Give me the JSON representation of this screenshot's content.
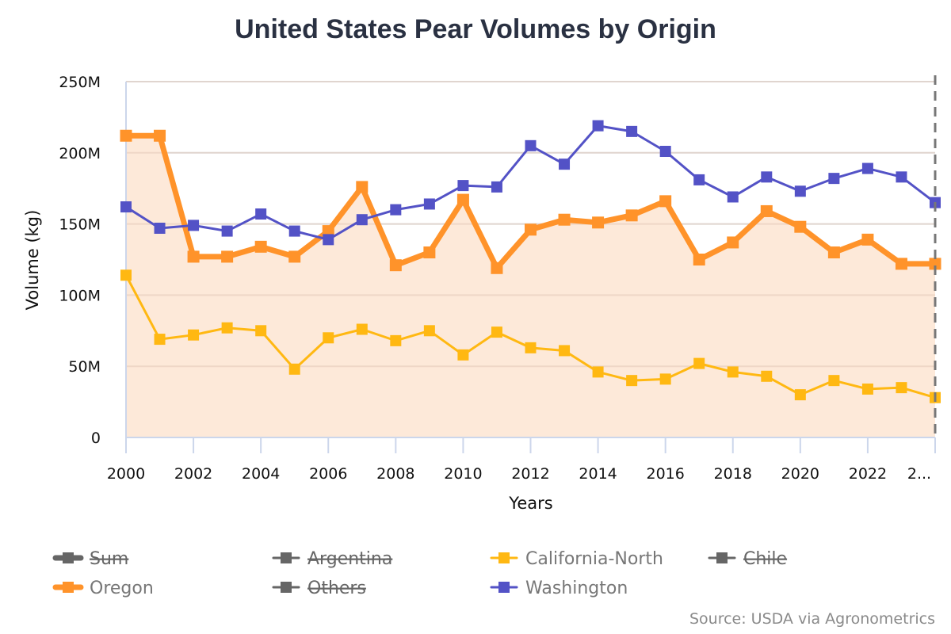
{
  "chart_data": {
    "type": "line",
    "title": "United States Pear Volumes by Origin",
    "xlabel": "Years",
    "ylabel": "Volume (kg)",
    "ylim": [
      0,
      250000000
    ],
    "y_ticks": [
      {
        "value": 0,
        "label": "0"
      },
      {
        "value": 50000000,
        "label": "50M"
      },
      {
        "value": 100000000,
        "label": "100M"
      },
      {
        "value": 150000000,
        "label": "150M"
      },
      {
        "value": 200000000,
        "label": "200M"
      },
      {
        "value": 250000000,
        "label": "250M"
      }
    ],
    "x": [
      2000,
      2001,
      2002,
      2003,
      2004,
      2005,
      2006,
      2007,
      2008,
      2009,
      2010,
      2011,
      2012,
      2013,
      2014,
      2015,
      2016,
      2017,
      2018,
      2019,
      2020,
      2021,
      2022,
      2023,
      2024
    ],
    "x_ticks": [
      {
        "value": 2000,
        "label": "2000"
      },
      {
        "value": 2002,
        "label": "2002"
      },
      {
        "value": 2004,
        "label": "2004"
      },
      {
        "value": 2006,
        "label": "2006"
      },
      {
        "value": 2008,
        "label": "2008"
      },
      {
        "value": 2010,
        "label": "2010"
      },
      {
        "value": 2012,
        "label": "2012"
      },
      {
        "value": 2014,
        "label": "2014"
      },
      {
        "value": 2016,
        "label": "2016"
      },
      {
        "value": 2018,
        "label": "2018"
      },
      {
        "value": 2020,
        "label": "2020"
      },
      {
        "value": 2022,
        "label": "2022"
      },
      {
        "value": 2024,
        "label": "2..."
      }
    ],
    "grid": true,
    "marker_line_year": 2024,
    "series": [
      {
        "name": "Washington",
        "color": "#5352c6",
        "visible": true,
        "area": false,
        "values": [
          162000000,
          147000000,
          149000000,
          145000000,
          157000000,
          145000000,
          139000000,
          153000000,
          160000000,
          164000000,
          177000000,
          176000000,
          205000000,
          192000000,
          219000000,
          215000000,
          201000000,
          181000000,
          169000000,
          183000000,
          173000000,
          182000000,
          189000000,
          183000000,
          165000000
        ]
      },
      {
        "name": "Oregon",
        "color": "#ff932a",
        "visible": true,
        "area": true,
        "area_color": "#fde7d5",
        "values": [
          212000000,
          212000000,
          127000000,
          127000000,
          134000000,
          127000000,
          145000000,
          176000000,
          121000000,
          130000000,
          167000000,
          119000000,
          146000000,
          153000000,
          151000000,
          156000000,
          166000000,
          125000000,
          137000000,
          159000000,
          148000000,
          130000000,
          139000000,
          122000000,
          122000000
        ]
      },
      {
        "name": "California-North",
        "color": "#ffb812",
        "visible": true,
        "area": false,
        "values": [
          114000000,
          69000000,
          72000000,
          77000000,
          75000000,
          48000000,
          70000000,
          76000000,
          68000000,
          75000000,
          58000000,
          74000000,
          63000000,
          61000000,
          46000000,
          40000000,
          41000000,
          52000000,
          46000000,
          43000000,
          30000000,
          40000000,
          34000000,
          35000000,
          28000000
        ]
      }
    ],
    "legend": {
      "placement": "bottom",
      "items": [
        {
          "name": "Sum",
          "color": "#666666",
          "hidden": true,
          "thick": true
        },
        {
          "name": "Argentina",
          "color": "#666666",
          "hidden": true,
          "thick": false
        },
        {
          "name": "California-North",
          "color": "#ffb812",
          "hidden": false,
          "thick": false
        },
        {
          "name": "Chile",
          "color": "#666666",
          "hidden": true,
          "thick": false
        },
        {
          "name": "Oregon",
          "color": "#ff932a",
          "hidden": false,
          "thick": true
        },
        {
          "name": "Others",
          "color": "#666666",
          "hidden": true,
          "thick": false
        },
        {
          "name": "Washington",
          "color": "#5352c6",
          "hidden": false,
          "thick": false
        }
      ]
    },
    "source": "Source: USDA via Agronometrics"
  }
}
